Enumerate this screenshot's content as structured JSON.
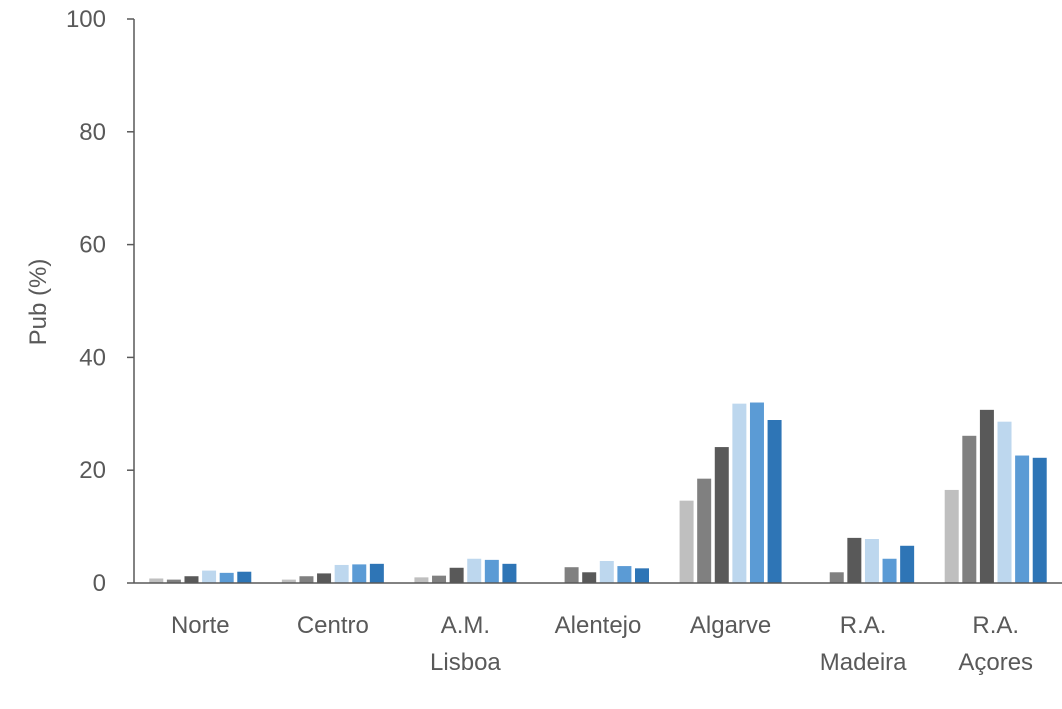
{
  "chart_data": {
    "type": "bar",
    "ylabel": "Pub (%)",
    "ylim": [
      0,
      100
    ],
    "yticks": [
      "0",
      "20",
      "40",
      "60",
      "80",
      "100"
    ],
    "categories": [
      [
        "Norte"
      ],
      [
        "Centro"
      ],
      [
        "A.M.",
        "Lisboa"
      ],
      [
        "Alentejo"
      ],
      [
        "Algarve"
      ],
      [
        "R.A.",
        "Madeira"
      ],
      [
        "R.A.",
        "Açores"
      ]
    ],
    "series": [
      {
        "color": "#bfbfbf",
        "values": [
          0.8,
          0.6,
          1.0,
          0,
          14.6,
          0,
          16.5
        ]
      },
      {
        "color": "#808080",
        "values": [
          0.6,
          1.2,
          1.3,
          2.8,
          18.5,
          1.9,
          26.1
        ]
      },
      {
        "color": "#595959",
        "values": [
          1.2,
          1.7,
          2.7,
          1.9,
          24.1,
          8.0,
          30.7
        ]
      },
      {
        "color": "#bdd7ee",
        "values": [
          2.2,
          3.2,
          4.3,
          3.9,
          31.8,
          7.8,
          28.6
        ]
      },
      {
        "color": "#5b9bd5",
        "values": [
          1.8,
          3.3,
          4.1,
          3.0,
          32.0,
          4.3,
          22.6
        ]
      },
      {
        "color": "#2e75b6",
        "values": [
          2.0,
          3.4,
          3.4,
          2.6,
          28.9,
          6.6,
          22.2
        ]
      }
    ],
    "grid": false,
    "legend": "none"
  }
}
